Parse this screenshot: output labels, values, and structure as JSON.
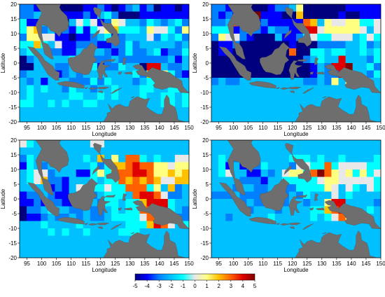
{
  "chart_data": {
    "type": "heatmap",
    "xlabel": "Longitude",
    "ylabel": "Latitude",
    "xlim": [
      92.5,
      150
    ],
    "ylim": [
      -20,
      20
    ],
    "x_ticks": [
      95,
      100,
      105,
      110,
      115,
      120,
      125,
      130,
      135,
      140,
      145,
      150
    ],
    "y_ticks": [
      -20,
      -15,
      -10,
      -5,
      0,
      5,
      10,
      15,
      20
    ],
    "cell_size_deg": 2.5,
    "colorbar": {
      "min": -5,
      "max": 5,
      "ticks": [
        -5,
        -4,
        -3,
        -2,
        -1,
        0,
        1,
        2,
        3,
        4,
        5
      ],
      "colors": [
        "#00007f",
        "#0000ff",
        "#0080ff",
        "#00c0ff",
        "#00ffff",
        "#e8e8e8",
        "#ffff80",
        "#ffc000",
        "#ff6000",
        "#e00000",
        "#7f0000"
      ]
    },
    "land_color": "#6e6e6e",
    "panels": [
      {
        "grid": [
          "CCBDEAAAABBCBABCDBCABBAB",
          "CCDDCCBBBCBDECAAABBBBBBB",
          "EBBDEAADFEFBCGFDDCEDCDEC",
          "EGHCDBCBEBEFGHEEEDGFFECG",
          "CGGFFBBABBCDEBCDDDFCEDEC",
          "EEHEDFBBCCCBBCCECDDDDDCD",
          "DEDDCCBBDDDDCBCECCDEBCCE",
          "ACDDDDDECBCCCDCCCCCCCDBD",
          "AADDDCCDFDEBCCEDDAJJDCCD",
          "CDDDDBCDCDDDDDDDECHIGECB",
          "DCDBDDDCCCECEDDDCDEEDDDD",
          "DEDEDDCEDDCDDEDDDEEDDEED",
          "DEDDDDDEEDDEDEDDDEDDEEDE",
          "EEDDEDEDDEEDDDDDEDDDEEDE",
          "DDDDDDDDDDDDDDDEDDDDDDDD",
          "DDDDDDDDDDDDDDDDDDDDDDDD"
        ]
      },
      {
        "grid": [
          "CCBCAAAABCCDGAAAAAABBBBB",
          "CBCBBBKBBBAAHAAAAABAABBB",
          "CCDIDCBCBBBBBIHDGFFGGEEF",
          "EEEBCDCBDCCBBJJFGGGGGFDF",
          "CGFFCBAAADBBCEFEEFFFDEFE",
          "ABBCAAAAAAABAAACCCCDDECD",
          "ABBAAAAAAAAIAAEEDEEDDEDE",
          "AAAAAAAAAAAAACDEDDJDDDCE",
          "AAAAAAAAAAAAAABDCJJKDDEC",
          "AAAAAAAAAAAAAABDCCJKDDCE",
          "CDCCDDDDDDDDDCCDCGDGCCDD",
          "DDDDDDDDDDDDDDDDDDDDDDDD",
          "DDDDDDDDDDDDDDDDDDDDDDDD",
          "DDDDDDDDDDDDDDDDDDDDDDDD",
          "DDDDDDDDDDDDDDDDDDDDDDDD",
          "DDDDDDDDDDDDDDDDDDDDDDDD"
        ]
      },
      {
        "grid": [
          "FEDDDDDDDDFFDDDDDDDDDDDD",
          "DDDDDDDDDDDDDDDDDDDDDDDD",
          "CEDDDDDDDEDHDGDIIEDEDDFF",
          "BEDCDDDDDDECEHHIJIIGGFGG",
          "DEFFCDDDBBEGEIIIJJIGGHGH",
          "DEFHCCBDDDEDEEIHIHIHFFHH",
          "DDDDBCBDFEEEFEEIIIEGDHCD",
          "BCCDCBBDCCCDEEEDIJJIFCCD",
          "BBCBCCBBCCDCEEDEEHJJJEDD",
          "ACCDEDDCCDCCDEDEEIIJJEDC",
          "ABBCDCCDCDCCDEEEEFIIJGCC",
          "DDDEDDDDEDDDDDDEEEHJIFDE",
          "DDDDEDEDDEDDDDEEEDDDDDDD",
          "DDDDDDDDDDDDDDDDDDDDDDDD",
          "DDDDDDDDDDDDDDDDDDDDDDDD",
          "DDDDDDDDDDDDDDDDDDDDDDDD"
        ]
      },
      {
        "grid": [
          "DDDDDDDDDDDDDDDDDDDDDDDD",
          "DDDDDDDDDDDDDDDDDDDDDDDD",
          "DEDCJCDDDDDEEEDEDDEDDDDE",
          "DEBDBCCEDDDCFFEEIEFFFFEE",
          "DEFDDBBDCDFGGEIKIGFGEGEF",
          "DDDDCCCBDDEEEEEFGGFFFFFE",
          "DDDCDDCCDDCCEEEEGFDFEDFE",
          "CCCDCCCCCCCDCEDDDFDEDDDD",
          "DDDDCDCCCDCDDCDDGJJDDDDC",
          "DDDDDCDDDCDDDDEEHIJJDDED",
          "DDCDDDDDEDDDDDEDEFIGDDDD",
          "DDDDDDDDDDDDDDDDDDDDDDDD",
          "DDDDDDDDDDDDDDDDDDDDDDDD",
          "DDDDDDDDDDDDDDDDDDDDDDDD",
          "DDDDDDDDDDDDDDDDDDDDDDDD",
          "DDDDDDDDDDDDDDDDDDDDDDDD"
        ]
      }
    ]
  }
}
